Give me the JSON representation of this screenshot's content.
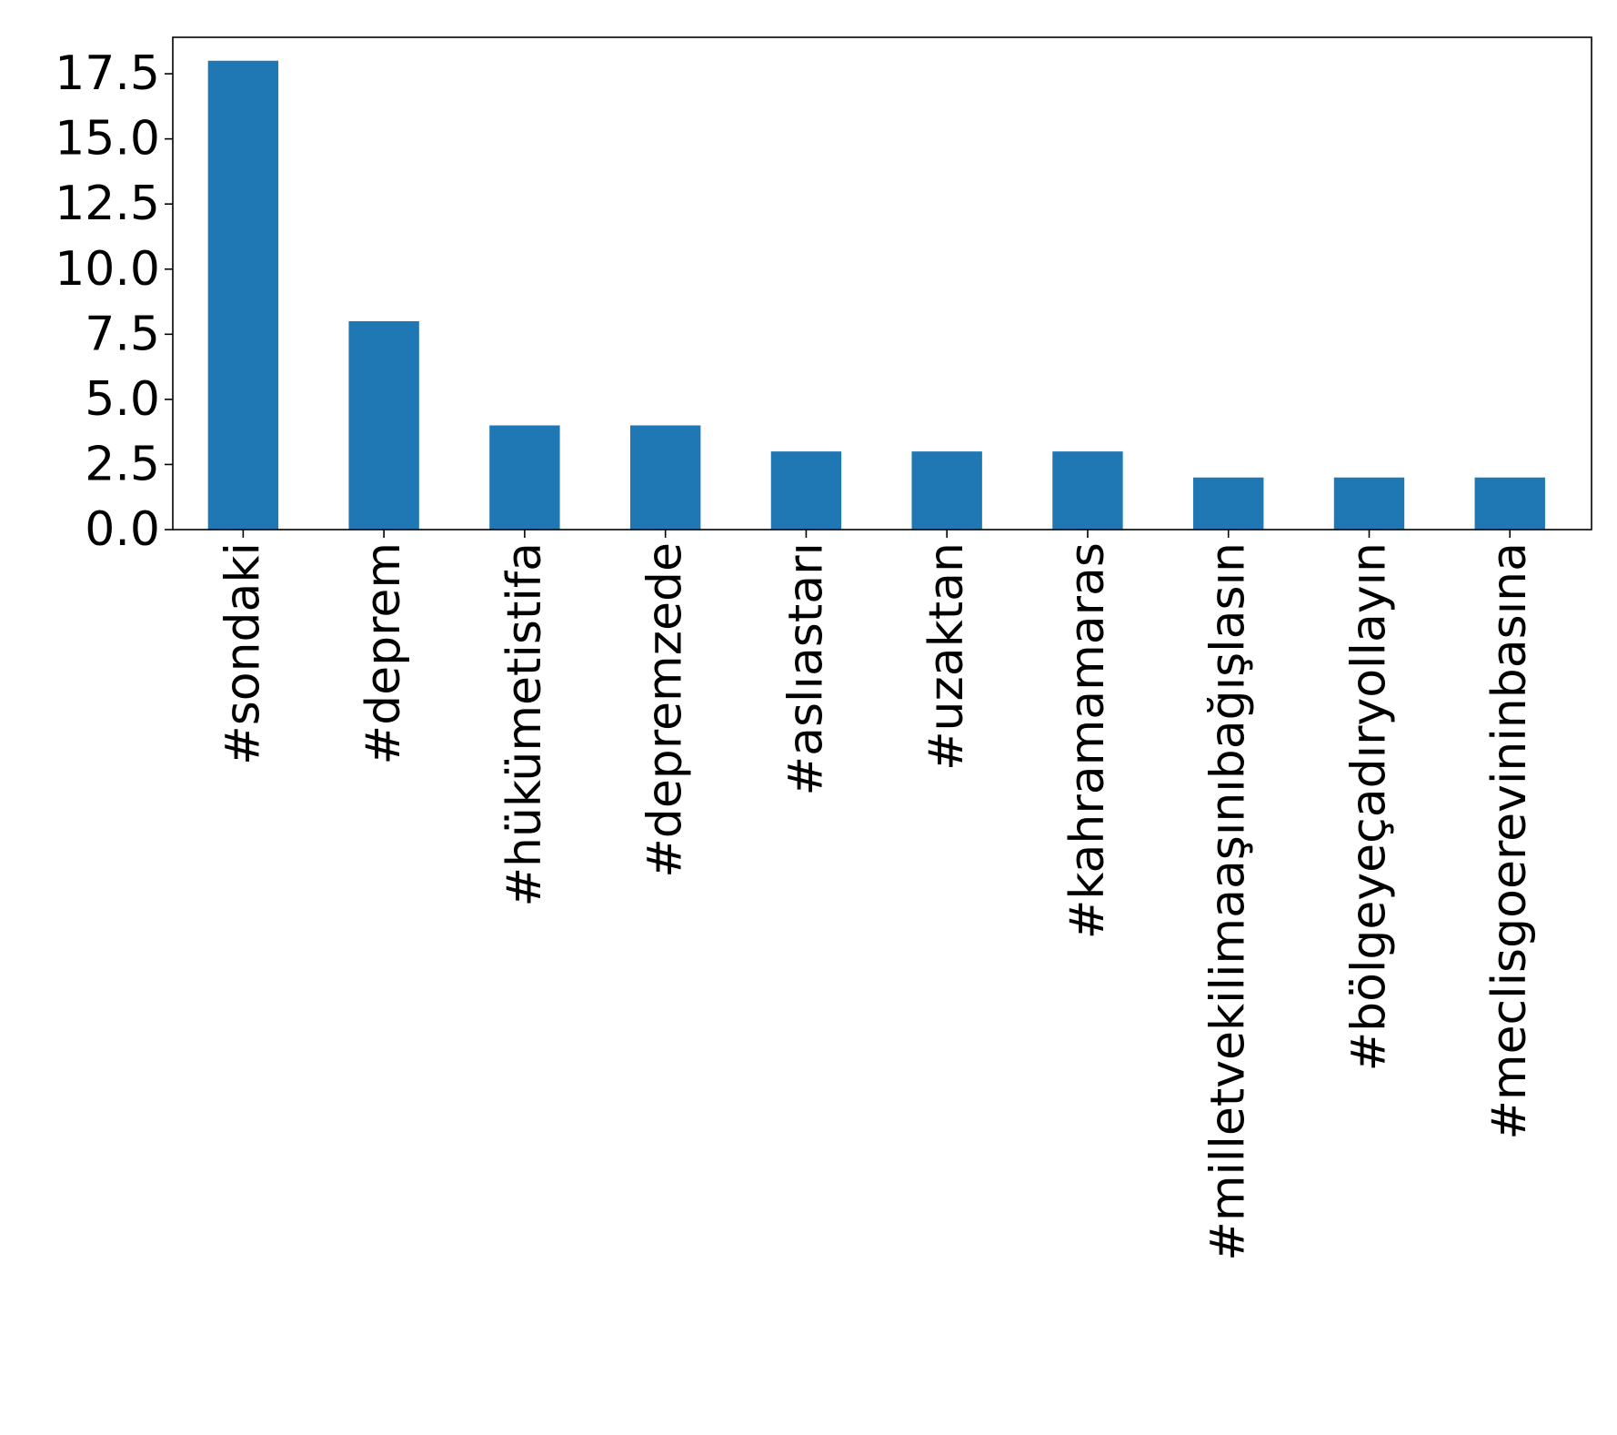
{
  "chart_data": {
    "type": "bar",
    "categories": [
      "#sondaki",
      "#deprem",
      "#hükümetistifa",
      "#depremzede",
      "#aslıastarı",
      "#uzaktan",
      "#kahramamaras",
      "#milletvekilimaaşınıbağışlasın",
      "#bölgeyeçadıryollayın",
      "#meclisgoerevininbasına"
    ],
    "values": [
      18,
      8,
      4,
      4,
      3,
      3,
      3,
      2,
      2,
      2
    ],
    "yticks": [
      "0.0",
      "2.5",
      "5.0",
      "7.5",
      "10.0",
      "12.5",
      "15.0",
      "17.5"
    ],
    "ylim": [
      0,
      18.9
    ],
    "bar_color": "#1f77b4",
    "grid": false,
    "title": "",
    "xlabel": "",
    "ylabel": ""
  }
}
